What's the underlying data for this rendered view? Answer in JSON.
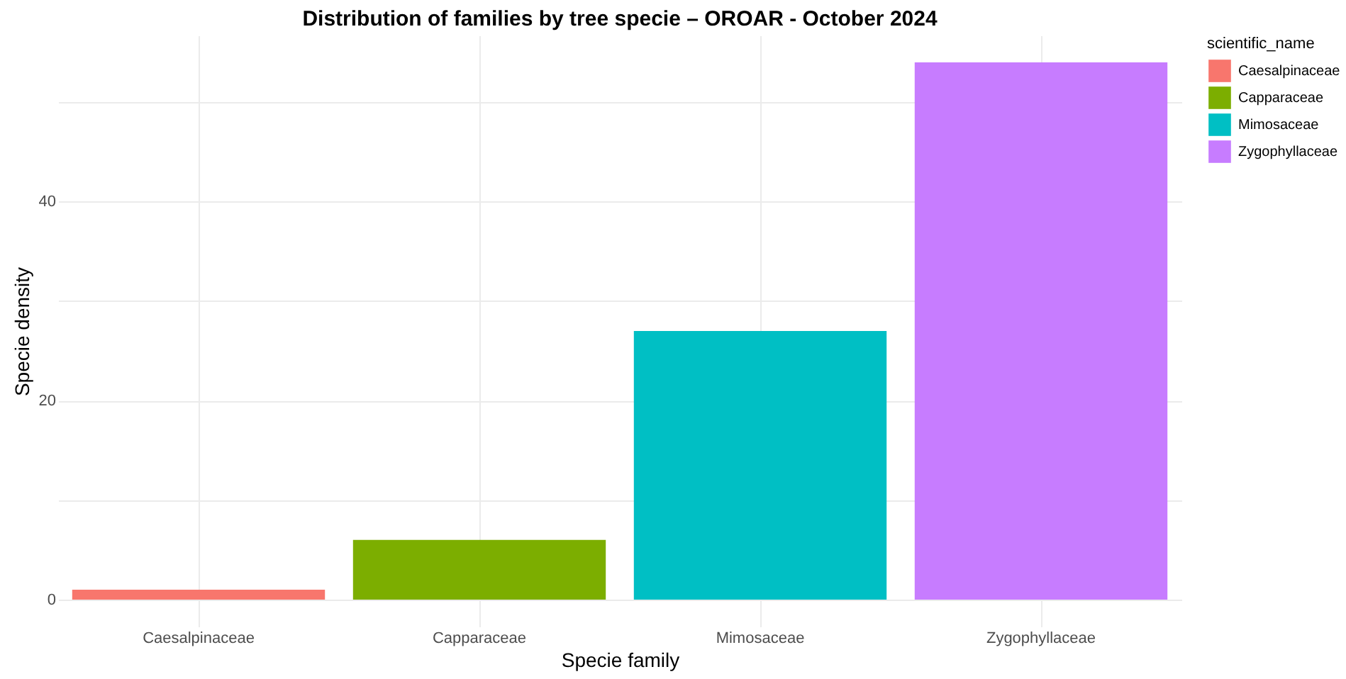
{
  "chart_data": {
    "type": "bar",
    "title": "Distribution of families by tree specie – OROAR - October 2024",
    "xlabel": "Specie family",
    "ylabel": "Specie density",
    "legend_title": "scientific_name",
    "categories": [
      "Caesalpinaceae",
      "Capparaceae",
      "Mimosaceae",
      "Zygophyllaceae"
    ],
    "series": [
      {
        "name": "Caesalpinaceae",
        "color": "#f8766d",
        "values": [
          1,
          null,
          null,
          null
        ]
      },
      {
        "name": "Capparaceae",
        "color": "#7cae00",
        "values": [
          null,
          6,
          null,
          null
        ]
      },
      {
        "name": "Mimosaceae",
        "color": "#00bfc4",
        "values": [
          null,
          null,
          27,
          null
        ]
      },
      {
        "name": "Zygophyllaceae",
        "color": "#c77cff",
        "values": [
          null,
          null,
          null,
          54
        ]
      }
    ],
    "ylim": [
      -2.7,
      56.7
    ],
    "yticks": [
      0,
      {
        "value": 10,
        "label": null
      },
      20,
      {
        "value": 30,
        "label": null
      },
      40,
      {
        "value": 50,
        "label": null
      }
    ],
    "grid": true,
    "legend": "right"
  }
}
